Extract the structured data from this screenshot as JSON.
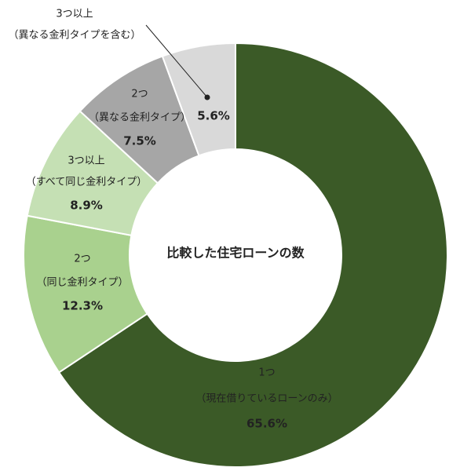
{
  "chart_data": {
    "type": "donut",
    "title": "比較した住宅ローンの数",
    "categories": [
      "1つ",
      "2つ",
      "3つ以上",
      "2つ",
      "3つ以上"
    ],
    "sublabels": [
      "（現在借りているローンのみ）",
      "（同じ金利タイプ）",
      "（すべて同じ金利タイプ）",
      "（異なる金利タイプ）",
      "（異なる金利タイプを含む）"
    ],
    "values": [
      65.6,
      12.3,
      8.9,
      7.5,
      5.6
    ],
    "value_labels": [
      "65.6%",
      "12.3%",
      "8.9%",
      "7.5%",
      "5.6%"
    ],
    "colors": [
      "#3b5a27",
      "#a9d18e",
      "#c5e0b4",
      "#a6a6a6",
      "#d9d9d9"
    ]
  }
}
